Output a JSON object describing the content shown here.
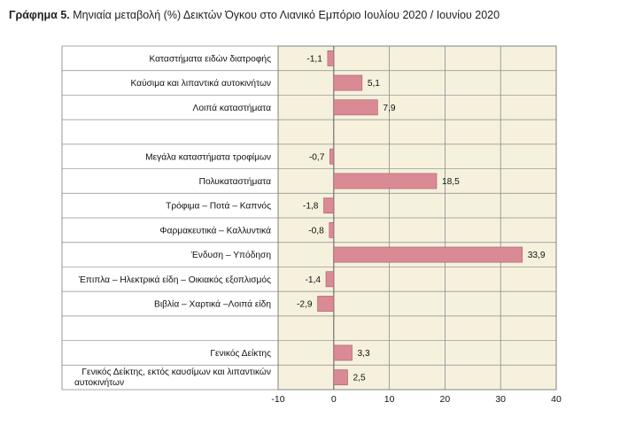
{
  "figure": {
    "label": "Γράφημα 5.",
    "title": "Μηνιαία μεταβολή (%) Δεικτών Όγκου στο Λιανικό Εμπόριο Ιουλίου 2020 / Ιουνίου 2020"
  },
  "colors": {
    "plot_bg": "#F5F1DD",
    "bar": "#D98A95",
    "bar_edge": "#A85E6B",
    "grid": "#8C8C8C",
    "frame": "#7F7F7F"
  },
  "chart_data": {
    "type": "bar",
    "orientation": "horizontal",
    "categories": [
      [
        "Καταστήματα ειδών διατροφής"
      ],
      [
        "Καύσιμα και λιπαντικά αυτοκινήτων"
      ],
      [
        "Λοιπά καταστήματα"
      ],
      [
        ""
      ],
      [
        "Μεγάλα καταστήματα τροφίμων"
      ],
      [
        "Πολυκαταστήματα"
      ],
      [
        "Τρόφιμα – Ποτά – Καπνός"
      ],
      [
        "Φαρμακευτικά – Καλλυντικά"
      ],
      [
        "Ένδυση – Υπόδηση"
      ],
      [
        "Έπιπλα – Ηλεκτρικά είδη – Οικιακός εξοπλισμός"
      ],
      [
        "Βιβλία – Χαρτικά –Λοιπά είδη"
      ],
      [
        ""
      ],
      [
        "Γενικός Δείκτης"
      ],
      [
        "Γενικός Δείκτης, εκτός καυσίμων και λιπαντικών",
        "αυτοκινήτων"
      ]
    ],
    "values": [
      -1.1,
      5.1,
      7.9,
      null,
      -0.7,
      18.5,
      -1.8,
      -0.8,
      33.9,
      -1.4,
      -2.9,
      null,
      3.3,
      2.5
    ],
    "value_labels": [
      "-1,1",
      "5,1",
      "7,9",
      "",
      "-0,7",
      "18,5",
      "-1,8",
      "-0,8",
      "33,9",
      "-1,4",
      "-2,9",
      "",
      "3,3",
      "2,5"
    ],
    "xlim": [
      -10,
      40
    ],
    "xticks": [
      -10,
      0,
      10,
      20,
      30,
      40
    ],
    "xtick_labels": [
      "-10",
      "0",
      "10",
      "20",
      "30",
      "40"
    ],
    "grid": "horizontal separators and vertical lines at ticks"
  }
}
